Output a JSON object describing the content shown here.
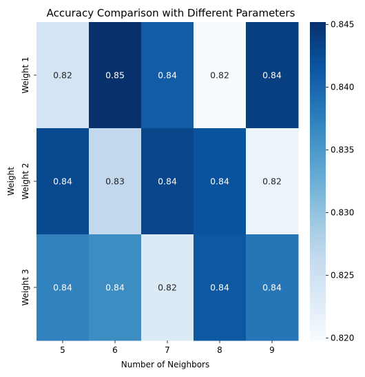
{
  "chart_data": {
    "type": "heatmap",
    "title": "Accuracy Comparison with Different Parameters",
    "xlabel": "Number of Neighbors",
    "ylabel": "Weight",
    "x_categories": [
      "5",
      "6",
      "7",
      "8",
      "9"
    ],
    "y_categories": [
      "Weight 1",
      "Weight 2",
      "Weight 3"
    ],
    "values": [
      [
        0.8243,
        0.8452,
        0.8408,
        0.8198,
        0.8438
      ],
      [
        0.8428,
        0.8265,
        0.8432,
        0.8419,
        0.8212
      ],
      [
        0.8372,
        0.8362,
        0.8232,
        0.8413,
        0.8384
      ]
    ],
    "annotations": [
      [
        "0.82",
        "0.85",
        "0.84",
        "0.82",
        "0.84"
      ],
      [
        "0.84",
        "0.83",
        "0.84",
        "0.84",
        "0.82"
      ],
      [
        "0.84",
        "0.84",
        "0.82",
        "0.84",
        "0.84"
      ]
    ],
    "colorbar": {
      "range": [
        0.8198,
        0.8452
      ],
      "ticks": [
        "0.820",
        "0.825",
        "0.830",
        "0.835",
        "0.840",
        "0.845"
      ],
      "tick_values": [
        0.82,
        0.825,
        0.83,
        0.835,
        0.84,
        0.845
      ],
      "colormap": "Blues"
    }
  }
}
